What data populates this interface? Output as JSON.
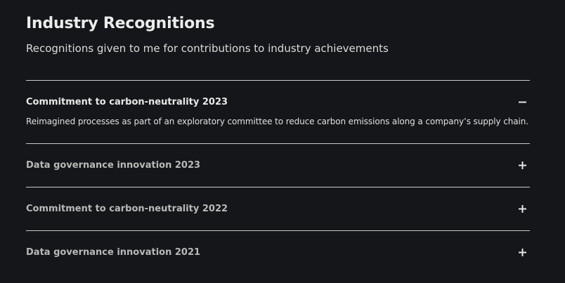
{
  "section": {
    "title": "Industry Recognitions",
    "subtitle": "Recognitions given to me for contributions to industry achievements"
  },
  "accordion": {
    "items": [
      {
        "title": "Commitment to carbon-neutrality 2023",
        "expanded": true,
        "toggle_icon": "minus-icon",
        "body": "Reimagined processes as part of an exploratory committee to reduce carbon emissions along a company’s supply chain."
      },
      {
        "title": "Data governance innovation 2023",
        "expanded": false,
        "toggle_icon": "plus-icon"
      },
      {
        "title": "Commitment to carbon-neutrality 2022",
        "expanded": false,
        "toggle_icon": "plus-icon"
      },
      {
        "title": "Data governance innovation 2021",
        "expanded": false,
        "toggle_icon": "plus-icon"
      }
    ]
  },
  "colors": {
    "background": "#141619",
    "divider": "#c9c9c9",
    "text_primary": "#e8e8e8",
    "text_muted": "#b9b9b9"
  }
}
